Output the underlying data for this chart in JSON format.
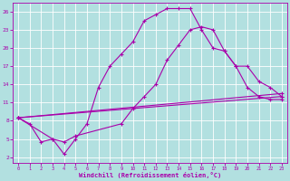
{
  "background_color": "#b2e0e0",
  "grid_color": "#ffffff",
  "line_color": "#aa00aa",
  "marker": "+",
  "xlabel": "Windchill (Refroidissement éolien,°C)",
  "xlabel_color": "#aa00aa",
  "tick_color": "#aa00aa",
  "xlim": [
    -0.5,
    23.5
  ],
  "ylim": [
    1,
    27.5
  ],
  "yticks": [
    2,
    5,
    8,
    11,
    14,
    17,
    20,
    23,
    26
  ],
  "xticks": [
    0,
    1,
    2,
    3,
    4,
    5,
    6,
    7,
    8,
    9,
    10,
    11,
    12,
    13,
    14,
    15,
    16,
    17,
    18,
    19,
    20,
    21,
    22,
    23
  ],
  "curve1_x": [
    0,
    1,
    2,
    3,
    4,
    5,
    6,
    7,
    8,
    9,
    10,
    11,
    12,
    13,
    14,
    15,
    16,
    17,
    18,
    19,
    20,
    21,
    22,
    23
  ],
  "curve1_y": [
    8.5,
    7.5,
    4.5,
    5.0,
    2.5,
    5.0,
    7.5,
    13.5,
    17.0,
    19.0,
    21.0,
    24.5,
    25.5,
    26.5,
    26.5,
    26.5,
    23.0,
    20.0,
    19.5,
    17.0,
    13.5,
    12.0,
    11.5,
    11.5
  ],
  "curve2_x": [
    0,
    3,
    4,
    5,
    9,
    10,
    11,
    12,
    13,
    14,
    15,
    16,
    17,
    18,
    19,
    20,
    21,
    22,
    23
  ],
  "curve2_y": [
    8.5,
    5.0,
    4.5,
    5.5,
    7.5,
    10.0,
    12.0,
    14.0,
    18.0,
    20.5,
    23.0,
    23.5,
    23.0,
    19.5,
    17.0,
    17.0,
    14.5,
    13.5,
    12.0
  ],
  "curve3_x": [
    0,
    23
  ],
  "curve3_y": [
    8.5,
    12.0
  ],
  "curve4_x": [
    0,
    23
  ],
  "curve4_y": [
    8.5,
    12.5
  ]
}
